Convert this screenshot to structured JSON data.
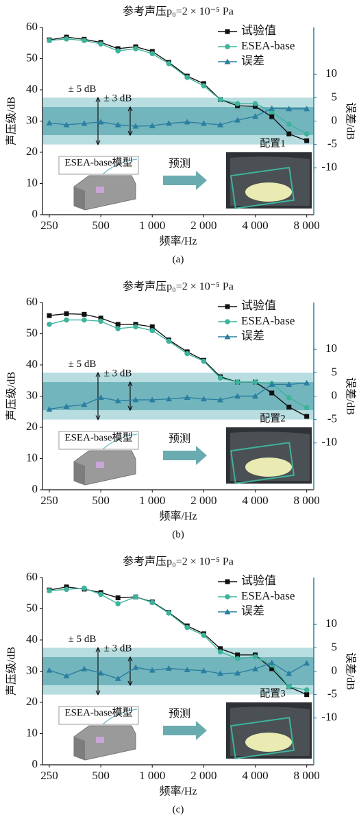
{
  "chart_data": [
    {
      "type": "line",
      "title": "参考声压p₀=2 × 10⁻⁵ Pa",
      "caption": "(a)",
      "xlabel": "频率/Hz",
      "ylabel": "声压级/dB",
      "y2label": "误差/dB",
      "x": [
        250,
        315,
        400,
        500,
        630,
        800,
        1000,
        1250,
        1600,
        2000,
        2500,
        3150,
        4000,
        5000,
        6300,
        8000
      ],
      "xlim": [
        228,
        8800
      ],
      "xscale": "log",
      "xticks": [
        250,
        500,
        {
          "value": 1000,
          "label": "1 000"
        },
        {
          "value": 2000,
          "label": "2 000"
        },
        {
          "value": 4000,
          "label": "4 000"
        },
        {
          "value": 8000,
          "label": "8 000"
        }
      ],
      "ylim": [
        0,
        60
      ],
      "yticks": [
        0,
        10,
        20,
        30,
        40,
        50,
        60
      ],
      "y2lim": [
        -20,
        20
      ],
      "y2ticks": [
        -10,
        -5,
        0,
        5,
        10
      ],
      "bands": [
        {
          "label": "± 5 dB",
          "range": [
            -5,
            5
          ],
          "color": "#b7dde0"
        },
        {
          "label": "± 3 dB",
          "range": [
            -3,
            3
          ],
          "color": "#72b5bd"
        }
      ],
      "inset": {
        "model": "ESEA-base模型",
        "arrow": "预测",
        "config": "配置1"
      },
      "legend": "upper right",
      "series": [
        {
          "name": "试验值",
          "color": "#111111",
          "marker": "square",
          "values": [
            56.0,
            56.9,
            56.2,
            55.2,
            53.2,
            53.8,
            52.3,
            48.8,
            44.4,
            42.0,
            36.9,
            34.9,
            34.7,
            31.4,
            25.9,
            23.7
          ]
        },
        {
          "name": "ESEA-base",
          "color": "#3db39b",
          "marker": "circle",
          "values": [
            55.8,
            56.3,
            55.8,
            54.7,
            52.5,
            53.2,
            51.6,
            48.4,
            44.0,
            41.3,
            36.9,
            35.6,
            35.6,
            33.0,
            29.0,
            25.9
          ]
        },
        {
          "name": "误差",
          "color": "#2a7ea0",
          "marker": "triangle",
          "axis": "y2",
          "values": [
            -0.4,
            -0.8,
            -0.5,
            -0.2,
            -0.8,
            -1.1,
            -1.0,
            -0.5,
            -0.2,
            -0.5,
            -0.8,
            0.2,
            1.0,
            2.7,
            2.6,
            2.6
          ]
        }
      ]
    },
    {
      "type": "line",
      "title": "参考声压p₀=2 × 10⁻⁵ Pa",
      "caption": "(b)",
      "xlabel": "频率/Hz",
      "ylabel": "声压级/dB",
      "y2label": "误差/dB",
      "x": [
        250,
        315,
        400,
        500,
        630,
        800,
        1000,
        1250,
        1600,
        2000,
        2500,
        3150,
        4000,
        5000,
        6300,
        8000
      ],
      "xlim": [
        228,
        8800
      ],
      "xscale": "log",
      "xticks": [
        250,
        500,
        {
          "value": 1000,
          "label": "1 000"
        },
        {
          "value": 2000,
          "label": "2 000"
        },
        {
          "value": 4000,
          "label": "4 000"
        },
        {
          "value": 8000,
          "label": "8 000"
        }
      ],
      "ylim": [
        0,
        60
      ],
      "yticks": [
        0,
        10,
        20,
        30,
        40,
        50,
        60
      ],
      "y2lim": [
        -20,
        20
      ],
      "y2ticks": [
        -10,
        -5,
        0,
        5,
        10
      ],
      "bands": [
        {
          "label": "± 5 dB",
          "range": [
            -5,
            5
          ],
          "color": "#b7dde0"
        },
        {
          "label": "± 3 dB",
          "range": [
            -3,
            3
          ],
          "color": "#72b5bd"
        }
      ],
      "inset": {
        "model": "ESEA-base模型",
        "arrow": "预测",
        "config": "配置2"
      },
      "legend": "upper right",
      "series": [
        {
          "name": "试验值",
          "color": "#111111",
          "marker": "square",
          "values": [
            55.8,
            56.4,
            56.2,
            55.0,
            53.0,
            53.0,
            52.2,
            48.0,
            44.2,
            41.5,
            36.2,
            34.5,
            34.5,
            31.0,
            26.5,
            23.5
          ]
        },
        {
          "name": "ESEA-base",
          "color": "#3db39b",
          "marker": "circle",
          "values": [
            53.0,
            54.4,
            54.4,
            54.0,
            51.6,
            52.2,
            51.0,
            47.6,
            43.6,
            41.2,
            35.8,
            34.5,
            34.5,
            34.0,
            29.5,
            26.3
          ]
        },
        {
          "name": "误差",
          "color": "#2a7ea0",
          "marker": "triangle",
          "axis": "y2",
          "values": [
            -2.8,
            -2.2,
            -1.8,
            -0.3,
            -1.0,
            -0.8,
            -0.8,
            -0.6,
            -0.3,
            -0.6,
            -0.8,
            0.0,
            0.0,
            2.5,
            2.5,
            2.8
          ]
        }
      ]
    },
    {
      "type": "line",
      "title": "参考声压p₀=2 × 10⁻⁵ Pa",
      "caption": "(c)",
      "xlabel": "频率/Hz",
      "ylabel": "声压级/dB",
      "y2label": "误差/dB",
      "x": [
        250,
        315,
        400,
        500,
        630,
        800,
        1000,
        1250,
        1600,
        2000,
        2500,
        3150,
        4000,
        5000,
        6300,
        8000
      ],
      "xlim": [
        228,
        8800
      ],
      "xscale": "log",
      "xticks": [
        250,
        500,
        {
          "value": 1000,
          "label": "1 000"
        },
        {
          "value": 2000,
          "label": "2 000"
        },
        {
          "value": 4000,
          "label": "4 000"
        },
        {
          "value": 8000,
          "label": "8 000"
        }
      ],
      "ylim": [
        0,
        60
      ],
      "yticks": [
        0,
        10,
        20,
        30,
        40,
        50,
        60
      ],
      "y2lim": [
        -20,
        20
      ],
      "y2ticks": [
        -10,
        -5,
        0,
        5,
        10
      ],
      "bands": [
        {
          "label": "± 5 dB",
          "range": [
            -5,
            5
          ],
          "color": "#b7dde0"
        },
        {
          "label": "± 3 dB",
          "range": [
            -3,
            3
          ],
          "color": "#72b5bd"
        }
      ],
      "inset": {
        "model": "ESEA-base模型",
        "arrow": "预测",
        "config": "配置3"
      },
      "legend": "upper right",
      "series": [
        {
          "name": "试验值",
          "color": "#111111",
          "marker": "square",
          "values": [
            56.0,
            57.0,
            56.3,
            55.2,
            53.5,
            53.8,
            52.2,
            48.8,
            44.5,
            42.0,
            37.2,
            35.2,
            35.2,
            30.8,
            25.0,
            22.5
          ]
        },
        {
          "name": "ESEA-base",
          "color": "#3db39b",
          "marker": "circle",
          "values": [
            55.8,
            56.2,
            56.6,
            54.6,
            51.6,
            53.8,
            52.0,
            48.6,
            44.0,
            41.5,
            36.2,
            34.0,
            34.6,
            32.0,
            25.0,
            24.0
          ]
        },
        {
          "name": "误差",
          "color": "#2a7ea0",
          "marker": "triangle",
          "axis": "y2",
          "values": [
            0.2,
            -1.0,
            0.5,
            -0.4,
            -1.6,
            0.8,
            0.2,
            0.6,
            0.3,
            0.1,
            -0.5,
            -0.4,
            0.5,
            1.8,
            -0.5,
            1.7
          ]
        }
      ]
    }
  ]
}
